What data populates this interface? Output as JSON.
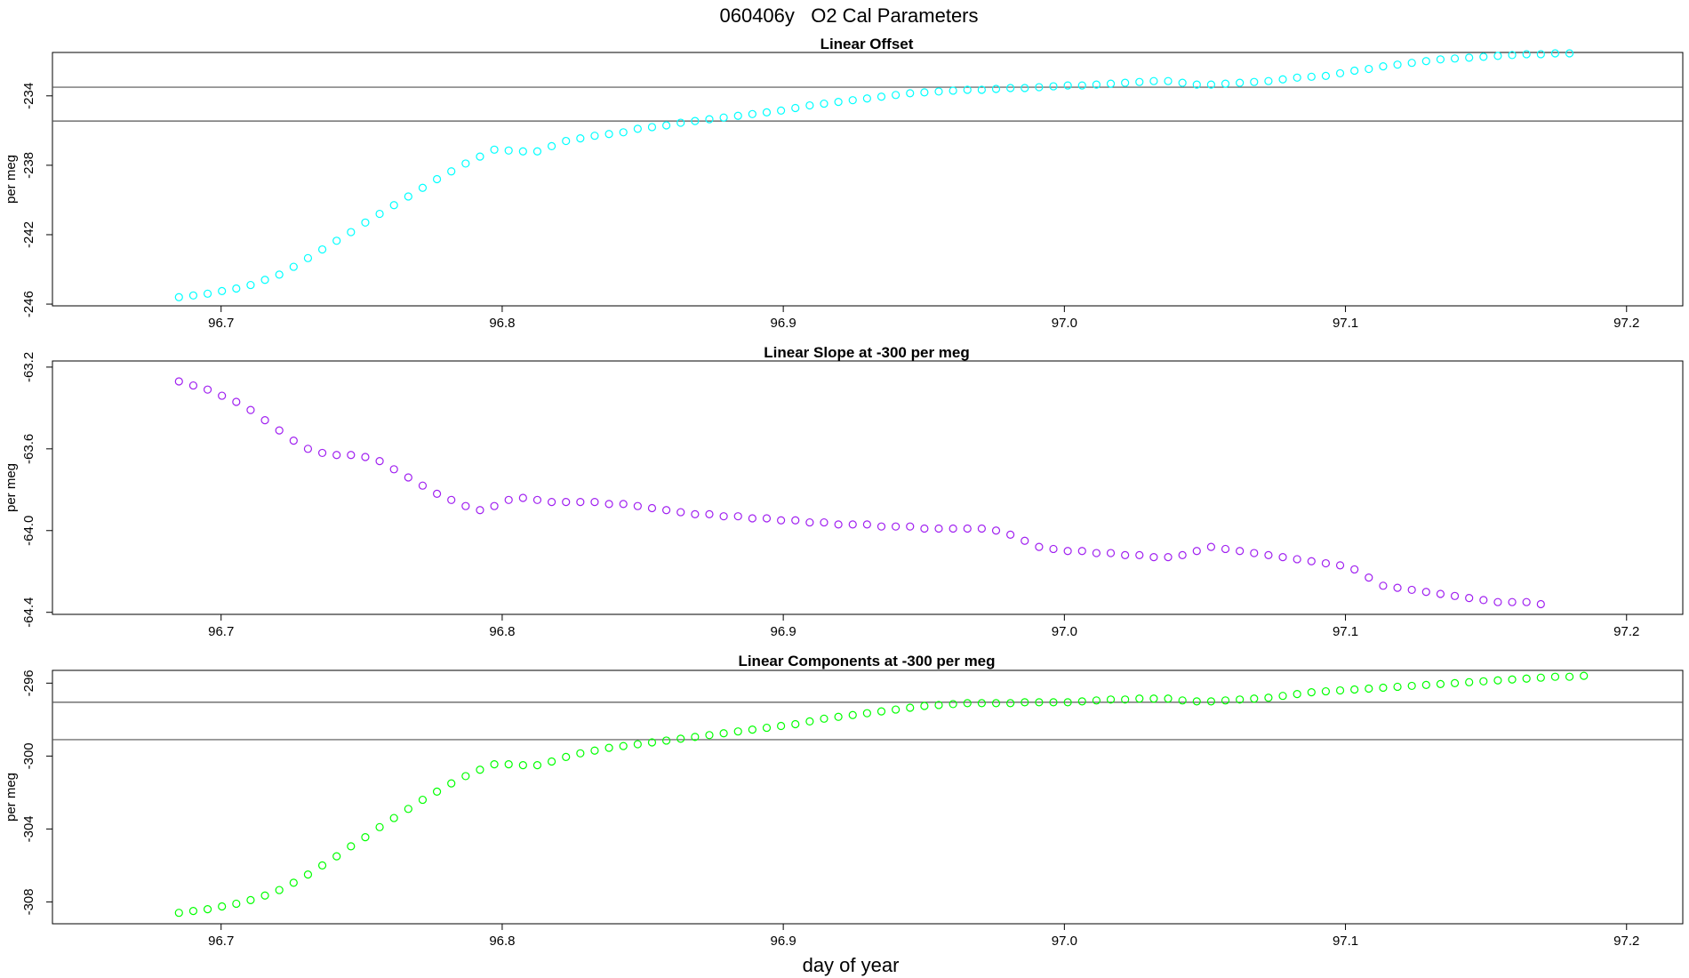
{
  "figure": {
    "title": "060406y   O2 Cal Parameters",
    "xlabel": "day of year"
  },
  "chart_data": [
    {
      "type": "scatter",
      "title": "Linear Offset",
      "xlabel": "day of year",
      "ylabel": "per meg",
      "color": "#00ffff",
      "xlim": [
        96.64,
        97.22
      ],
      "ylim": [
        -246.1,
        -231.5
      ],
      "xticks": [
        96.7,
        96.8,
        96.9,
        97.0,
        97.1,
        97.2
      ],
      "xtick_labels": [
        "96.7",
        "96.8",
        "96.9",
        "97.0",
        "97.1",
        "97.2"
      ],
      "yticks": [
        -246,
        -242,
        -238,
        -234
      ],
      "ytick_labels": [
        "-246",
        "-242",
        "-238",
        "-234"
      ],
      "reference_lines": [
        -233.5,
        -235.45
      ],
      "x_start": 96.685,
      "x_step": 0.0051,
      "y": [
        -245.6,
        -245.5,
        -245.4,
        -245.25,
        -245.1,
        -244.9,
        -244.6,
        -244.3,
        -243.85,
        -243.35,
        -242.85,
        -242.35,
        -241.85,
        -241.3,
        -240.8,
        -240.3,
        -239.8,
        -239.3,
        -238.8,
        -238.35,
        -237.9,
        -237.5,
        -237.1,
        -237.15,
        -237.2,
        -237.2,
        -236.9,
        -236.6,
        -236.45,
        -236.3,
        -236.2,
        -236.1,
        -235.9,
        -235.8,
        -235.7,
        -235.55,
        -235.45,
        -235.35,
        -235.25,
        -235.15,
        -235.05,
        -234.95,
        -234.85,
        -234.7,
        -234.55,
        -234.45,
        -234.35,
        -234.25,
        -234.15,
        -234.05,
        -233.95,
        -233.85,
        -233.8,
        -233.75,
        -233.7,
        -233.65,
        -233.65,
        -233.6,
        -233.55,
        -233.55,
        -233.5,
        -233.45,
        -233.4,
        -233.4,
        -233.35,
        -233.3,
        -233.25,
        -233.2,
        -233.15,
        -233.15,
        -233.25,
        -233.35,
        -233.35,
        -233.3,
        -233.25,
        -233.2,
        -233.15,
        -233.05,
        -232.95,
        -232.9,
        -232.85,
        -232.7,
        -232.55,
        -232.45,
        -232.3,
        -232.2,
        -232.1,
        -232.0,
        -231.9,
        -231.85,
        -231.8,
        -231.75,
        -231.7,
        -231.65,
        -231.6,
        -231.6,
        -231.55,
        -231.55
      ]
    },
    {
      "type": "scatter",
      "title": "Linear Slope at -300 per meg",
      "xlabel": "day of year",
      "ylabel": "per meg",
      "color": "#a020f0",
      "xlim": [
        96.64,
        97.22
      ],
      "ylim": [
        -64.41,
        -63.17
      ],
      "xticks": [
        96.7,
        96.8,
        96.9,
        97.0,
        97.1,
        97.2
      ],
      "xtick_labels": [
        "96.7",
        "96.8",
        "96.9",
        "97.0",
        "97.1",
        "97.2"
      ],
      "yticks": [
        -64.4,
        -64.0,
        -63.6,
        -63.2
      ],
      "ytick_labels": [
        "-64.4",
        "-64.0",
        "-63.6",
        "-63.2"
      ],
      "reference_lines": [],
      "x_start": 96.685,
      "x_step": 0.0051,
      "y": [
        -63.27,
        -63.29,
        -63.31,
        -63.34,
        -63.37,
        -63.41,
        -63.46,
        -63.51,
        -63.56,
        -63.6,
        -63.62,
        -63.63,
        -63.63,
        -63.64,
        -63.66,
        -63.7,
        -63.74,
        -63.78,
        -63.82,
        -63.85,
        -63.88,
        -63.9,
        -63.88,
        -63.85,
        -63.84,
        -63.85,
        -63.86,
        -63.86,
        -63.86,
        -63.86,
        -63.87,
        -63.87,
        -63.88,
        -63.89,
        -63.9,
        -63.91,
        -63.92,
        -63.92,
        -63.93,
        -63.93,
        -63.94,
        -63.94,
        -63.95,
        -63.95,
        -63.96,
        -63.96,
        -63.97,
        -63.97,
        -63.97,
        -63.98,
        -63.98,
        -63.98,
        -63.99,
        -63.99,
        -63.99,
        -63.99,
        -63.99,
        -64.0,
        -64.02,
        -64.05,
        -64.08,
        -64.09,
        -64.1,
        -64.1,
        -64.11,
        -64.11,
        -64.12,
        -64.12,
        -64.13,
        -64.13,
        -64.12,
        -64.1,
        -64.08,
        -64.09,
        -64.1,
        -64.11,
        -64.12,
        -64.13,
        -64.14,
        -64.15,
        -64.16,
        -64.17,
        -64.19,
        -64.23,
        -64.27,
        -64.28,
        -64.29,
        -64.3,
        -64.31,
        -64.32,
        -64.33,
        -64.34,
        -64.35,
        -64.35,
        -64.35,
        -64.36
      ]
    },
    {
      "type": "scatter",
      "title": "Linear Components at -300 per meg",
      "xlabel": "day of year",
      "ylabel": "per meg",
      "color": "#00ff00",
      "xlim": [
        96.64,
        97.22
      ],
      "ylim": [
        -309.2,
        -295.3
      ],
      "xticks": [
        96.7,
        96.8,
        96.9,
        97.0,
        97.1,
        97.2
      ],
      "xtick_labels": [
        "96.7",
        "96.8",
        "96.9",
        "97.0",
        "97.1",
        "97.2"
      ],
      "yticks": [
        -308,
        -304,
        -300,
        -296
      ],
      "ytick_labels": [
        "-308",
        "-304",
        "-300",
        "-296"
      ],
      "reference_lines": [
        -297.05,
        -299.1
      ],
      "x_start": 96.685,
      "x_step": 0.0051,
      "y": [
        -308.6,
        -308.5,
        -308.4,
        -308.25,
        -308.1,
        -307.9,
        -307.65,
        -307.35,
        -306.95,
        -306.5,
        -306.0,
        -305.5,
        -304.95,
        -304.45,
        -303.9,
        -303.4,
        -302.9,
        -302.4,
        -301.95,
        -301.5,
        -301.1,
        -300.75,
        -300.45,
        -300.45,
        -300.5,
        -300.5,
        -300.3,
        -300.05,
        -299.85,
        -299.7,
        -299.55,
        -299.45,
        -299.35,
        -299.25,
        -299.15,
        -299.05,
        -298.95,
        -298.85,
        -298.75,
        -298.65,
        -298.55,
        -298.45,
        -298.35,
        -298.25,
        -298.1,
        -297.95,
        -297.85,
        -297.75,
        -297.65,
        -297.55,
        -297.45,
        -297.35,
        -297.25,
        -297.2,
        -297.15,
        -297.1,
        -297.1,
        -297.1,
        -297.1,
        -297.05,
        -297.05,
        -297.05,
        -297.05,
        -297.0,
        -296.95,
        -296.9,
        -296.9,
        -296.85,
        -296.85,
        -296.85,
        -296.95,
        -297.0,
        -297.0,
        -296.95,
        -296.9,
        -296.85,
        -296.8,
        -296.7,
        -296.6,
        -296.5,
        -296.45,
        -296.4,
        -296.35,
        -296.3,
        -296.25,
        -296.2,
        -296.15,
        -296.1,
        -296.05,
        -296.0,
        -295.95,
        -295.9,
        -295.85,
        -295.8,
        -295.75,
        -295.7,
        -295.65,
        -295.65,
        -295.6
      ]
    }
  ]
}
